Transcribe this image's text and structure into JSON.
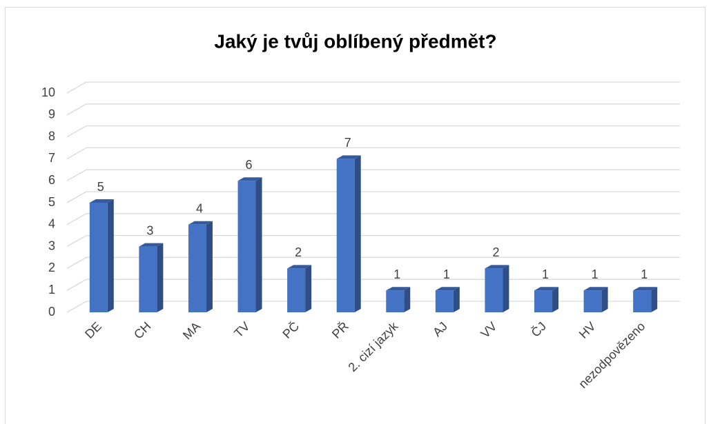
{
  "chart_data": {
    "type": "bar",
    "title": "Jaký je tvůj oblíbený předmět?",
    "categories": [
      "DE",
      "CH",
      "MA",
      "TV",
      "PČ",
      "PŘ",
      "2. cizí jazyk",
      "AJ",
      "VV",
      "ČJ",
      "HV",
      "nezodpovězeno"
    ],
    "values": [
      5,
      3,
      4,
      6,
      2,
      7,
      1,
      1,
      2,
      1,
      1,
      1
    ],
    "color": "#4472c4",
    "ylim": [
      0,
      10
    ],
    "yticks": [
      0,
      1,
      2,
      3,
      4,
      5,
      6,
      7,
      8,
      9,
      10
    ],
    "grid": true
  }
}
